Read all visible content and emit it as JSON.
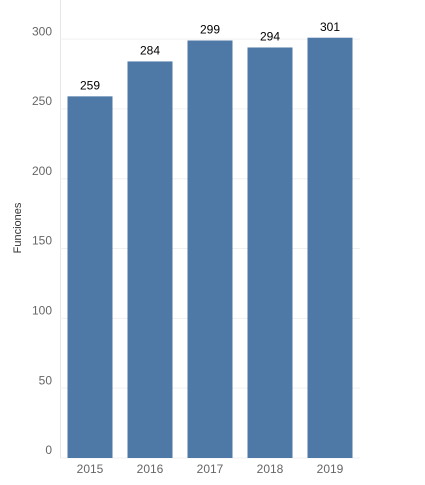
{
  "chart_data": {
    "type": "bar",
    "y_label": "Funciones",
    "categories": [
      "2015",
      "2016",
      "2017",
      "2018",
      "2019"
    ],
    "values": [
      259,
      284,
      299,
      294,
      301
    ],
    "color": "#4e79a7",
    "ylim": [
      0,
      328
    ],
    "yticks": [
      0,
      50,
      100,
      150,
      200,
      250,
      300
    ],
    "grid": true
  }
}
